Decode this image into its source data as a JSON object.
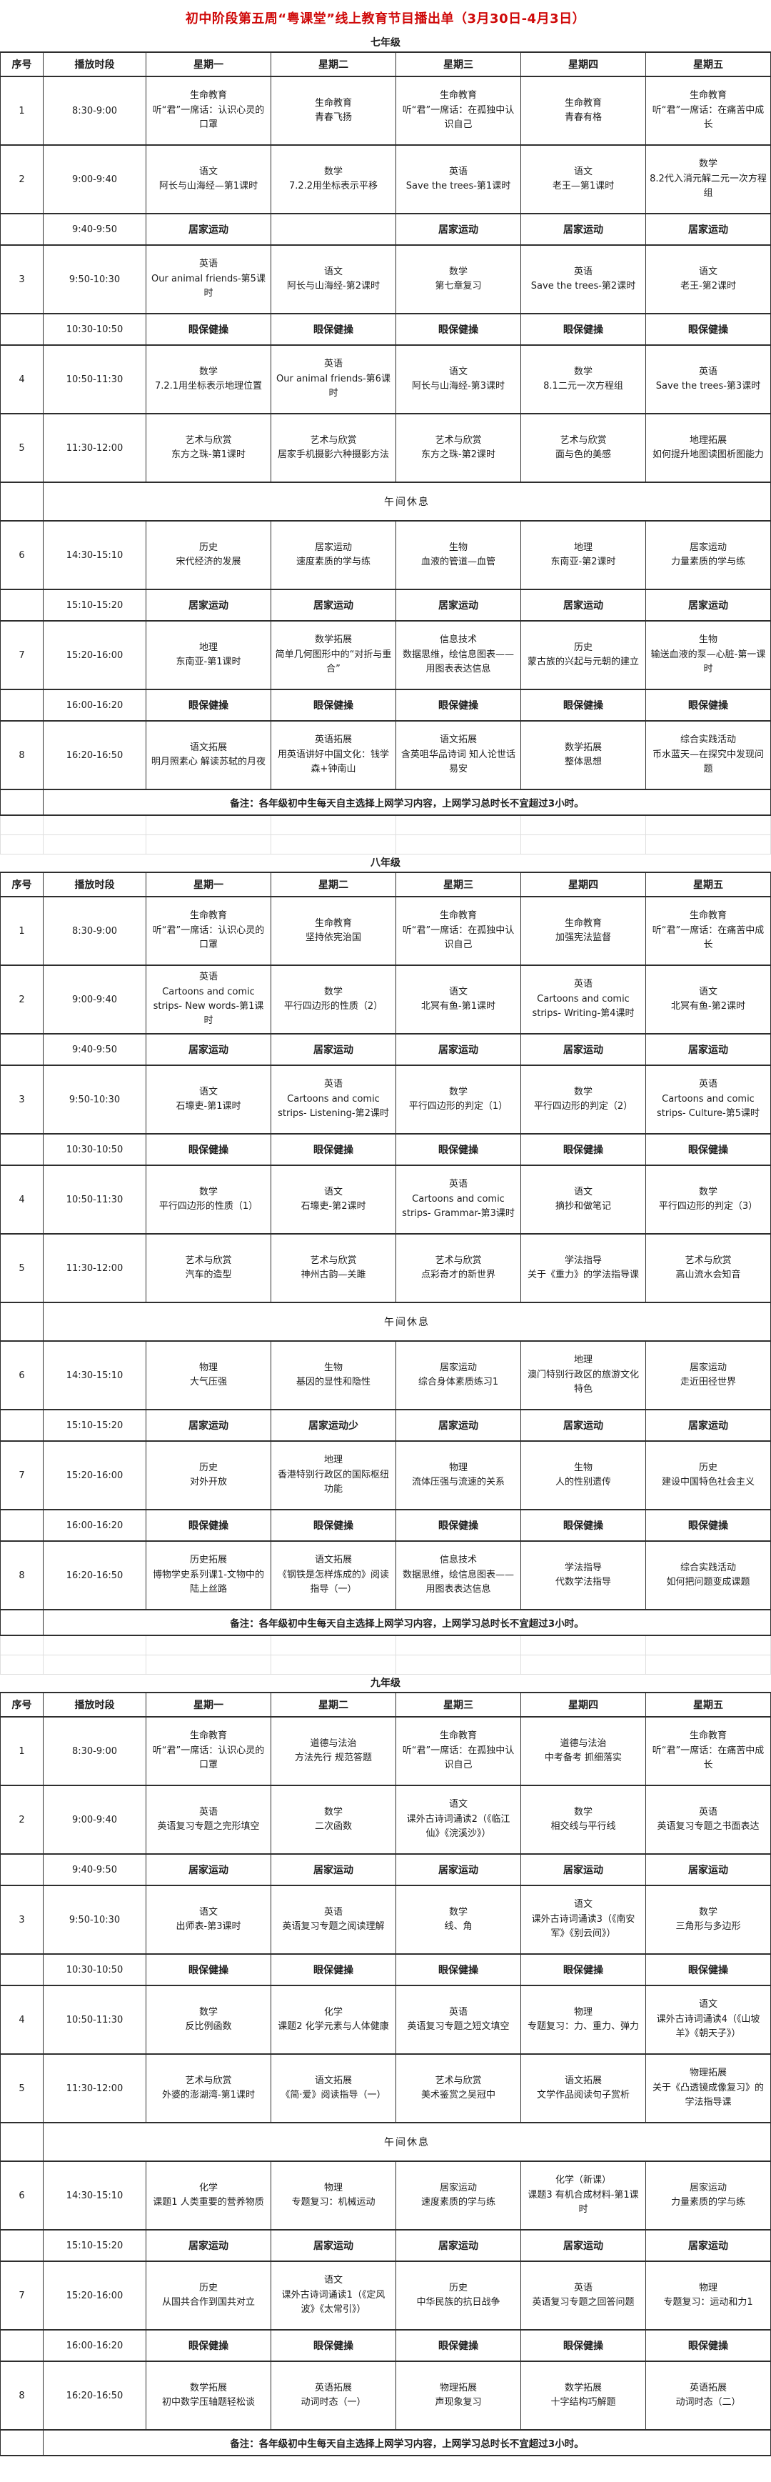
{
  "title": "初中阶段第五周“粤课堂”线上教育节目播出单（3月30日-4月3日）",
  "columns": [
    "序号",
    "播放时段",
    "星期一",
    "星期二",
    "星期三",
    "星期四",
    "星期五"
  ],
  "lunch_label": "午间休息",
  "note": "备注：各年级初中生每天自主选择上网学习内容，上网学习总时长不宜超过3小时。",
  "accent_color": "#cf0a0a",
  "sections": [
    {
      "grade": "七年级",
      "rows": [
        {
          "type": "course",
          "no": "1",
          "time": "8:30-9:00",
          "cells": [
            {
              "s": "生命教育",
              "t": "听“君”一席话：认识心灵的口罩"
            },
            {
              "s": "生命教育",
              "t": "青春飞扬"
            },
            {
              "s": "生命教育",
              "t": "听“君”一席话：在孤独中认识自己"
            },
            {
              "s": "生命教育",
              "t": "青春有格"
            },
            {
              "s": "生命教育",
              "t": "听“君”一席话：在痛苦中成长"
            }
          ]
        },
        {
          "type": "course",
          "no": "2",
          "time": "9:00-9:40",
          "cells": [
            {
              "s": "语文",
              "t": "阿长与山海经—第1课时"
            },
            {
              "s": "数学",
              "t": "7.2.2用坐标表示平移"
            },
            {
              "s": "英语",
              "t": "Save the trees-第1课时"
            },
            {
              "s": "语文",
              "t": "老王—第1课时"
            },
            {
              "s": "数学",
              "t": "8.2代入消元解二元一次方程组"
            }
          ]
        },
        {
          "type": "activity",
          "no": "",
          "time": "9:40-9:50",
          "cells": [
            "居家运动",
            "",
            "居家运动",
            "居家运动",
            "居家运动"
          ]
        },
        {
          "type": "course",
          "no": "3",
          "time": "9:50-10:30",
          "cells": [
            {
              "s": "英语",
              "t": "Our animal friends-第5课时"
            },
            {
              "s": "语文",
              "t": "阿长与山海经-第2课时"
            },
            {
              "s": "数学",
              "t": "第七章复习"
            },
            {
              "s": "英语",
              "t": "Save the trees-第2课时"
            },
            {
              "s": "语文",
              "t": "老王-第2课时"
            }
          ]
        },
        {
          "type": "activity",
          "no": "",
          "time": "10:30-10:50",
          "cells": [
            "眼保健操",
            "眼保健操",
            "眼保健操",
            "眼保健操",
            "眼保健操"
          ]
        },
        {
          "type": "course",
          "no": "4",
          "time": "10:50-11:30",
          "cells": [
            {
              "s": "数学",
              "t": "7.2.1用坐标表示地理位置"
            },
            {
              "s": "英语",
              "t": "Our animal friends-第6课时"
            },
            {
              "s": "语文",
              "t": "阿长与山海经-第3课时"
            },
            {
              "s": "数学",
              "t": "8.1二元一次方程组"
            },
            {
              "s": "英语",
              "t": "Save the trees-第3课时"
            }
          ]
        },
        {
          "type": "course",
          "no": "5",
          "time": "11:30-12:00",
          "cells": [
            {
              "s": "艺术与欣赏",
              "t": "东方之珠-第1课时"
            },
            {
              "s": "艺术与欣赏",
              "t": "居家手机摄影六种摄影方法"
            },
            {
              "s": "艺术与欣赏",
              "t": "东方之珠-第2课时"
            },
            {
              "s": "艺术与欣赏",
              "t": "面与色的美感"
            },
            {
              "s": "地理拓展",
              "t": "如何提升地图读图析图能力"
            }
          ]
        },
        {
          "type": "lunch"
        },
        {
          "type": "course",
          "no": "6",
          "time": "14:30-15:10",
          "cells": [
            {
              "s": "历史",
              "t": "宋代经济的发展"
            },
            {
              "s": "居家运动",
              "t": "速度素质的学与练"
            },
            {
              "s": "生物",
              "t": "血液的管道—血管"
            },
            {
              "s": "地理",
              "t": "东南亚-第2课时"
            },
            {
              "s": "居家运动",
              "t": "力量素质的学与练"
            }
          ]
        },
        {
          "type": "activity",
          "no": "",
          "time": "15:10-15:20",
          "cells": [
            "居家运动",
            "居家运动",
            "居家运动",
            "居家运动",
            "居家运动"
          ]
        },
        {
          "type": "course",
          "no": "7",
          "time": "15:20-16:00",
          "cells": [
            {
              "s": "地理",
              "t": "东南亚-第1课时"
            },
            {
              "s": "数学拓展",
              "t": "简单几何图形中的“对折与重合”"
            },
            {
              "s": "信息技术",
              "t": "数据思维，绘信息图表——用图表表达信息"
            },
            {
              "s": "历史",
              "t": "蒙古族的兴起与元朝的建立"
            },
            {
              "s": "生物",
              "t": "输送血液的泵—心脏-第一课时"
            }
          ]
        },
        {
          "type": "activity",
          "no": "",
          "time": "16:00-16:20",
          "cells": [
            "眼保健操",
            "眼保健操",
            "眼保健操",
            "眼保健操",
            "眼保健操"
          ]
        },
        {
          "type": "course",
          "no": "8",
          "time": "16:20-16:50",
          "cells": [
            {
              "s": "语文拓展",
              "t": "明月照素心 解读苏轼的月夜"
            },
            {
              "s": "英语拓展",
              "t": "用英语讲好中国文化：钱学森+钟南山"
            },
            {
              "s": "语文拓展",
              "t": "含英咀华品诗词 知人论世话易安"
            },
            {
              "s": "数学拓展",
              "t": "整体思想"
            },
            {
              "s": "综合实践活动",
              "t": "币水蓝天—在探究中发现问题"
            }
          ]
        },
        {
          "type": "note"
        }
      ]
    },
    {
      "grade": "八年级",
      "rows": [
        {
          "type": "course",
          "no": "1",
          "time": "8:30-9:00",
          "cells": [
            {
              "s": "生命教育",
              "t": "听“君”一席话：认识心灵的口罩"
            },
            {
              "s": "生命教育",
              "t": "坚持依宪治国"
            },
            {
              "s": "生命教育",
              "t": "听“君”一席话：在孤独中认识自己"
            },
            {
              "s": "生命教育",
              "t": "加强宪法监督"
            },
            {
              "s": "生命教育",
              "t": "听“君”一席话：在痛苦中成长"
            }
          ]
        },
        {
          "type": "course",
          "no": "2",
          "time": "9:00-9:40",
          "cells": [
            {
              "s": "英语",
              "t": "Cartoons and comic strips- New words-第1课时"
            },
            {
              "s": "数学",
              "t": "平行四边形的性质（2）"
            },
            {
              "s": "语文",
              "t": "北冥有鱼-第1课时"
            },
            {
              "s": "英语",
              "t": "Cartoons and comic strips- Writing-第4课时"
            },
            {
              "s": "语文",
              "t": "北冥有鱼-第2课时"
            }
          ]
        },
        {
          "type": "activity",
          "no": "",
          "time": "9:40-9:50",
          "cells": [
            "居家运动",
            "居家运动",
            "居家运动",
            "居家运动",
            "居家运动"
          ]
        },
        {
          "type": "course",
          "no": "3",
          "time": "9:50-10:30",
          "cells": [
            {
              "s": "语文",
              "t": "石壕吏-第1课时"
            },
            {
              "s": "英语",
              "t": "Cartoons and comic strips- Listening-第2课时"
            },
            {
              "s": "数学",
              "t": "平行四边形的判定（1）"
            },
            {
              "s": "数学",
              "t": "平行四边形的判定（2）"
            },
            {
              "s": "英语",
              "t": "Cartoons and comic strips- Culture-第5课时"
            }
          ]
        },
        {
          "type": "activity",
          "no": "",
          "time": "10:30-10:50",
          "cells": [
            "眼保健操",
            "眼保健操",
            "眼保健操",
            "眼保健操",
            "眼保健操"
          ]
        },
        {
          "type": "course",
          "no": "4",
          "time": "10:50-11:30",
          "cells": [
            {
              "s": "数学",
              "t": "平行四边形的性质（1）"
            },
            {
              "s": "语文",
              "t": "石壕吏-第2课时"
            },
            {
              "s": "英语",
              "t": "Cartoons and comic strips- Grammar-第3课时"
            },
            {
              "s": "语文",
              "t": "摘抄和做笔记"
            },
            {
              "s": "数学",
              "t": "平行四边形的判定（3）"
            }
          ]
        },
        {
          "type": "course",
          "no": "5",
          "time": "11:30-12:00",
          "cells": [
            {
              "s": "艺术与欣赏",
              "t": "汽车的造型"
            },
            {
              "s": "艺术与欣赏",
              "t": "神州古韵—关雎"
            },
            {
              "s": "艺术与欣赏",
              "t": "点彩奇才的新世界"
            },
            {
              "s": "学法指导",
              "t": "关于《重力》的学法指导课"
            },
            {
              "s": "艺术与欣赏",
              "t": "高山流水会知音"
            }
          ]
        },
        {
          "type": "lunch"
        },
        {
          "type": "course",
          "no": "6",
          "time": "14:30-15:10",
          "cells": [
            {
              "s": "物理",
              "t": "大气压强"
            },
            {
              "s": "生物",
              "t": "基因的显性和隐性"
            },
            {
              "s": "居家运动",
              "t": "综合身体素质练习1"
            },
            {
              "s": "地理",
              "t": "澳门特别行政区的旅游文化特色"
            },
            {
              "s": "居家运动",
              "t": "走近田径世界"
            }
          ]
        },
        {
          "type": "activity",
          "no": "",
          "time": "15:10-15:20",
          "cells": [
            "居家运动",
            "居家运动少",
            "居家运动",
            "居家运动",
            "居家运动"
          ]
        },
        {
          "type": "course",
          "no": "7",
          "time": "15:20-16:00",
          "cells": [
            {
              "s": "历史",
              "t": "对外开放"
            },
            {
              "s": "地理",
              "t": "香港特别行政区的国际枢纽功能"
            },
            {
              "s": "物理",
              "t": "流体压强与流速的关系"
            },
            {
              "s": "生物",
              "t": "人的性别遗传"
            },
            {
              "s": "历史",
              "t": "建设中国特色社会主义"
            }
          ]
        },
        {
          "type": "activity",
          "no": "",
          "time": "16:00-16:20",
          "cells": [
            "眼保健操",
            "眼保健操",
            "眼保健操",
            "眼保健操",
            "眼保健操"
          ]
        },
        {
          "type": "course",
          "no": "8",
          "time": "16:20-16:50",
          "cells": [
            {
              "s": "历史拓展",
              "t": "博物学史系列课1-文物中的陆上丝路"
            },
            {
              "s": "语文拓展",
              "t": "《钢铁是怎样炼成的》阅读指导（一）"
            },
            {
              "s": "信息技术",
              "t": "数据思维，绘信息图表——用图表表达信息"
            },
            {
              "s": "学法指导",
              "t": "代数学法指导"
            },
            {
              "s": "综合实践活动",
              "t": "如何把问题变成课题"
            }
          ]
        },
        {
          "type": "note"
        }
      ]
    },
    {
      "grade": "九年级",
      "rows": [
        {
          "type": "course",
          "no": "1",
          "time": "8:30-9:00",
          "cells": [
            {
              "s": "生命教育",
              "t": "听“君”一席话：认识心灵的口罩"
            },
            {
              "s": "道德与法治",
              "t": "方法先行 规范答题"
            },
            {
              "s": "生命教育",
              "t": "听“君”一席话：在孤独中认识自己"
            },
            {
              "s": "道德与法治",
              "t": "中考备考 抓细落实"
            },
            {
              "s": "生命教育",
              "t": "听“君”一席话：在痛苦中成长"
            }
          ]
        },
        {
          "type": "course",
          "no": "2",
          "time": "9:00-9:40",
          "cells": [
            {
              "s": "英语",
              "t": "英语复习专题之完形填空"
            },
            {
              "s": "数学",
              "t": "二次函数"
            },
            {
              "s": "语文",
              "t": "课外古诗词诵读2（《临江仙》《浣溪沙》）"
            },
            {
              "s": "数学",
              "t": "相交线与平行线"
            },
            {
              "s": "英语",
              "t": "英语复习专题之书面表达"
            }
          ]
        },
        {
          "type": "activity",
          "no": "",
          "time": "9:40-9:50",
          "cells": [
            "居家运动",
            "居家运动",
            "居家运动",
            "居家运动",
            "居家运动"
          ]
        },
        {
          "type": "course",
          "no": "3",
          "time": "9:50-10:30",
          "cells": [
            {
              "s": "语文",
              "t": "出师表-第3课时"
            },
            {
              "s": "英语",
              "t": "英语复习专题之阅读理解"
            },
            {
              "s": "数学",
              "t": "线、角"
            },
            {
              "s": "语文",
              "t": "课外古诗词诵读3（《南安军》《别云间》）"
            },
            {
              "s": "数学",
              "t": "三角形与多边形"
            }
          ]
        },
        {
          "type": "activity",
          "no": "",
          "time": "10:30-10:50",
          "cells": [
            "眼保健操",
            "眼保健操",
            "眼保健操",
            "眼保健操",
            "眼保健操"
          ]
        },
        {
          "type": "course",
          "no": "4",
          "time": "10:50-11:30",
          "cells": [
            {
              "s": "数学",
              "t": "反比例函数"
            },
            {
              "s": "化学",
              "t": "课题2 化学元素与人体健康"
            },
            {
              "s": "英语",
              "t": "英语复习专题之短文填空"
            },
            {
              "s": "物理",
              "t": "专题复习：力、重力、弹力"
            },
            {
              "s": "语文",
              "t": "课外古诗词诵读4（《山坡羊》《朝天子》）"
            }
          ]
        },
        {
          "type": "course",
          "no": "5",
          "time": "11:30-12:00",
          "cells": [
            {
              "s": "艺术与欣赏",
              "t": "外婆的澎湖湾-第1课时"
            },
            {
              "s": "语文拓展",
              "t": "《简·爱》阅读指导（一）"
            },
            {
              "s": "艺术与欣赏",
              "t": "美术鉴赏之吴冠中"
            },
            {
              "s": "语文拓展",
              "t": "文学作品阅读句子赏析"
            },
            {
              "s": "物理拓展",
              "t": "关于《凸透镜成像复习》的学法指导课"
            }
          ]
        },
        {
          "type": "lunch"
        },
        {
          "type": "course",
          "no": "6",
          "time": "14:30-15:10",
          "cells": [
            {
              "s": "化学",
              "t": "课题1 人类重要的营养物质"
            },
            {
              "s": "物理",
              "t": "专题复习：机械运动"
            },
            {
              "s": "居家运动",
              "t": "速度素质的学与练"
            },
            {
              "s": "化学（新课）",
              "t": "课题3 有机合成材料-第1课时"
            },
            {
              "s": "居家运动",
              "t": "力量素质的学与练"
            }
          ]
        },
        {
          "type": "activity",
          "no": "",
          "time": "15:10-15:20",
          "cells": [
            "居家运动",
            "居家运动",
            "居家运动",
            "居家运动",
            "居家运动"
          ]
        },
        {
          "type": "course",
          "no": "7",
          "time": "15:20-16:00",
          "cells": [
            {
              "s": "历史",
              "t": "从国共合作到国共对立"
            },
            {
              "s": "语文",
              "t": "课外古诗词诵读1（《定风波》《太常引》）"
            },
            {
              "s": "历史",
              "t": "中华民族的抗日战争"
            },
            {
              "s": "英语",
              "t": "英语复习专题之回答问题"
            },
            {
              "s": "物理",
              "t": "专题复习：运动和力1"
            }
          ]
        },
        {
          "type": "activity",
          "no": "",
          "time": "16:00-16:20",
          "cells": [
            "眼保健操",
            "眼保健操",
            "眼保健操",
            "眼保健操",
            "眼保健操"
          ]
        },
        {
          "type": "course",
          "no": "8",
          "time": "16:20-16:50",
          "cells": [
            {
              "s": "数学拓展",
              "t": "初中数学压轴题轻松谈"
            },
            {
              "s": "英语拓展",
              "t": "动词时态（一）"
            },
            {
              "s": "物理拓展",
              "t": "声现象复习"
            },
            {
              "s": "数学拓展",
              "t": "十字结构巧解题"
            },
            {
              "s": "英语拓展",
              "t": "动词时态（二）"
            }
          ]
        },
        {
          "type": "note"
        }
      ]
    }
  ]
}
